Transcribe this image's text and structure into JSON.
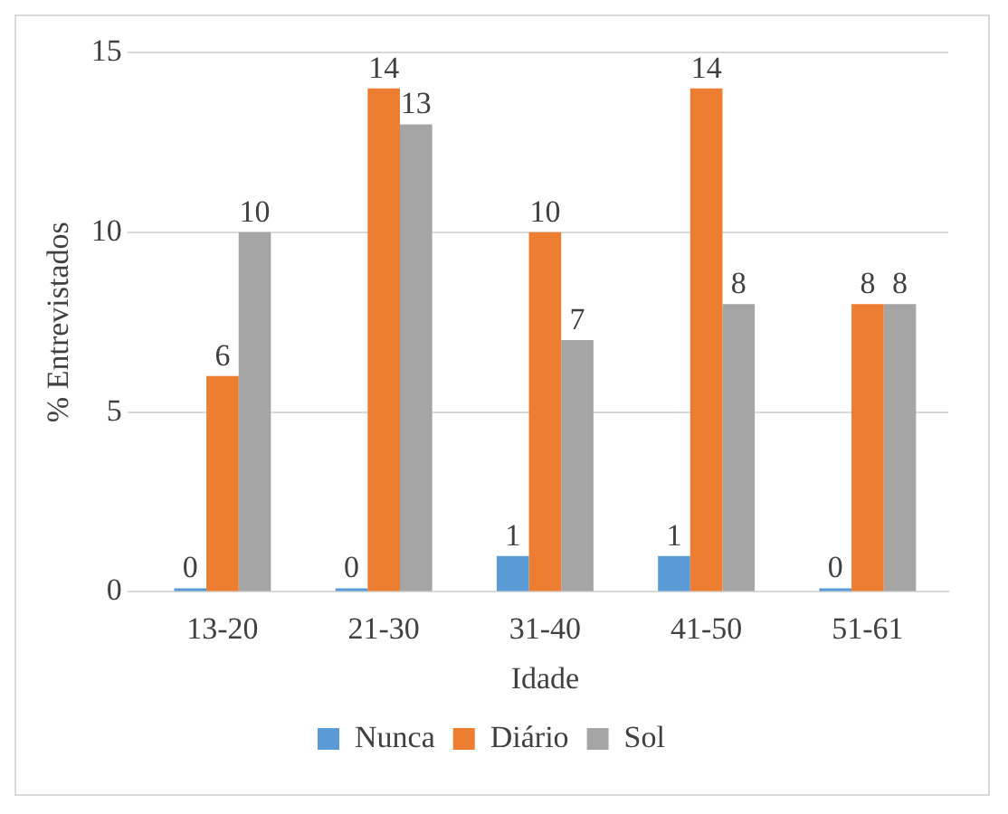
{
  "chart_data": {
    "type": "bar",
    "xlabel": "Idade",
    "ylabel": "% Entrevistados",
    "categories": [
      "13-20",
      "21-30",
      "31-40",
      "41-50",
      "51-61"
    ],
    "series": [
      {
        "name": "Nunca",
        "color": "#5b9bd5",
        "values": [
          0,
          0,
          1,
          1,
          0
        ]
      },
      {
        "name": "Diário",
        "color": "#ed7d31",
        "values": [
          6,
          14,
          10,
          14,
          8
        ]
      },
      {
        "name": "Sol",
        "color": "#a5a5a5",
        "values": [
          10,
          13,
          7,
          8,
          8
        ]
      }
    ],
    "ylim": [
      0,
      15
    ],
    "yticks": [
      0,
      5,
      10,
      15
    ],
    "grid": "y",
    "legend": "bottom",
    "data_labels": true
  }
}
